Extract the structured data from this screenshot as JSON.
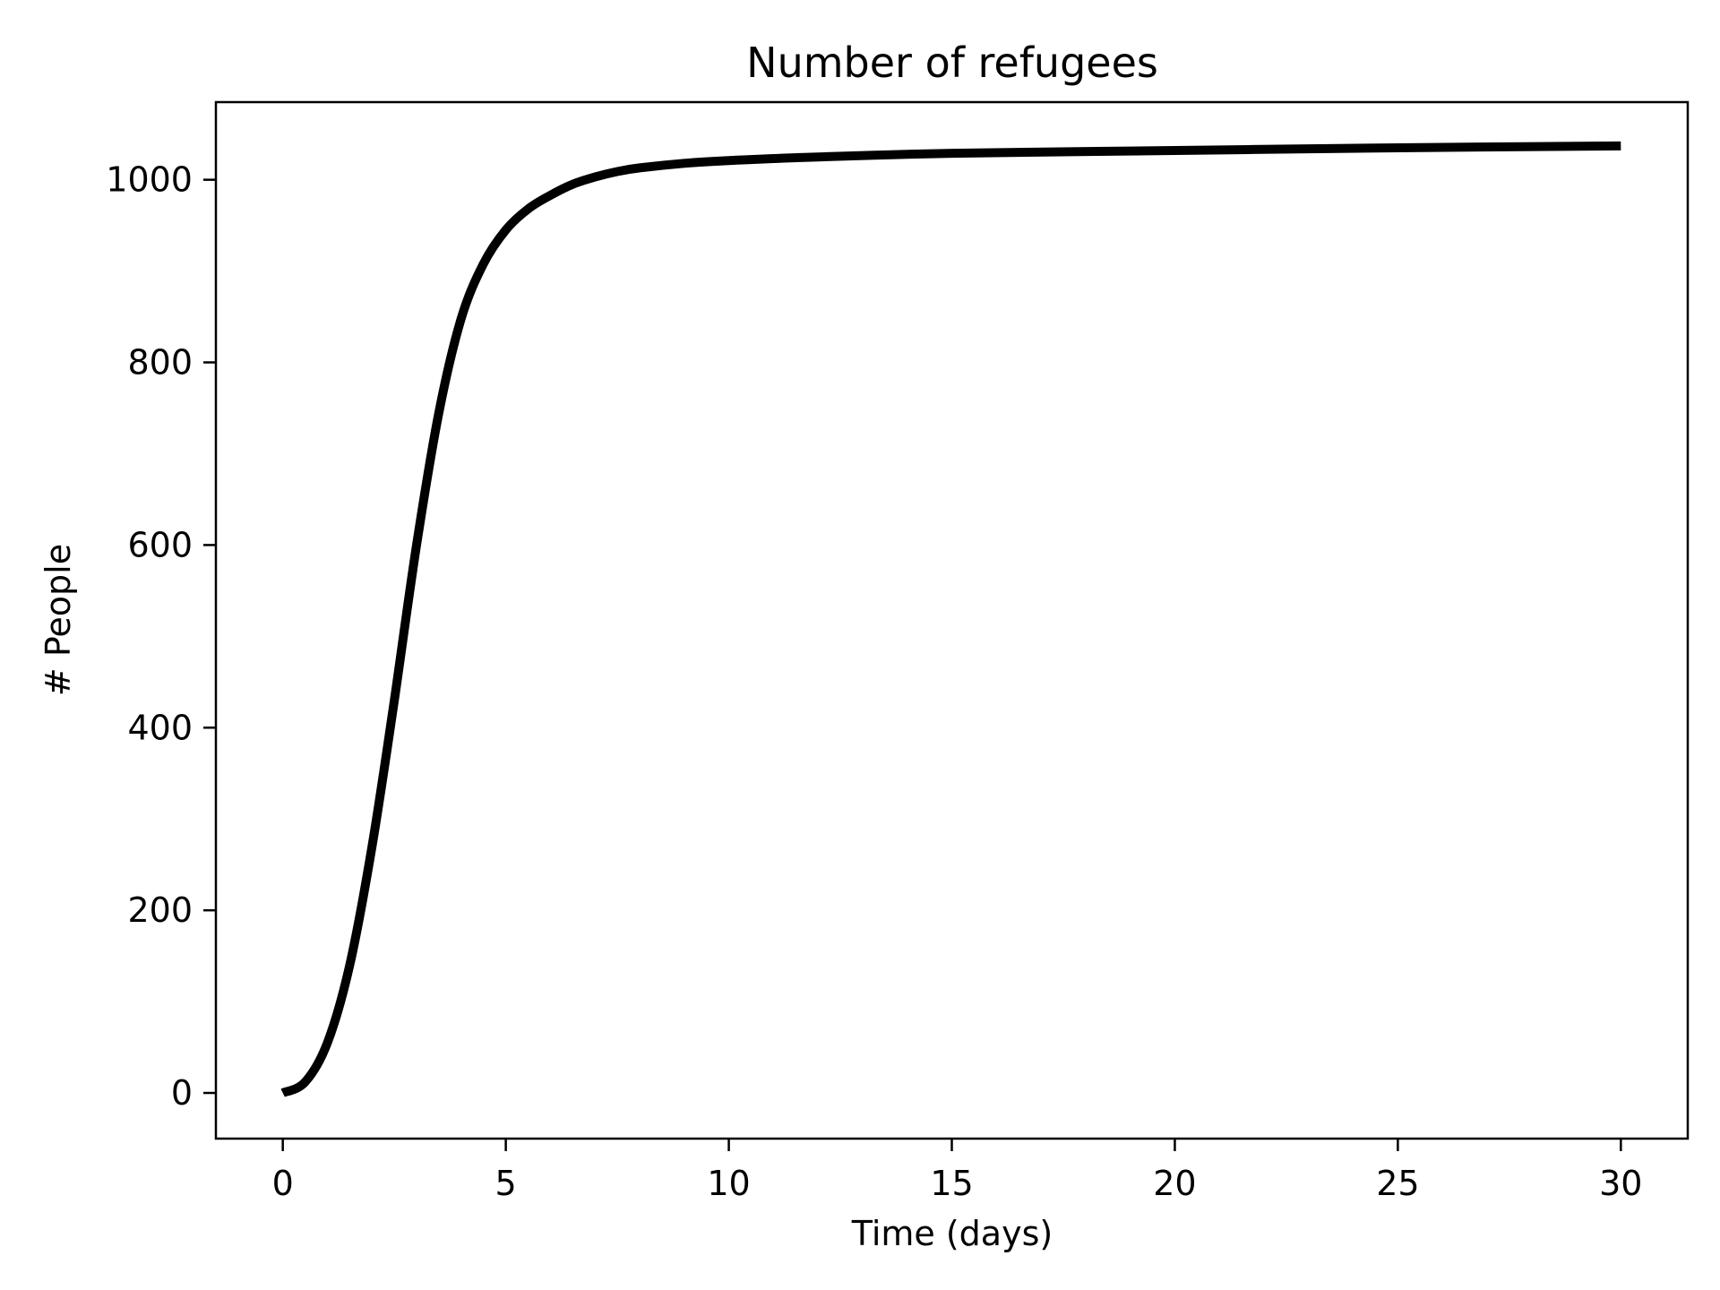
{
  "chart_data": {
    "type": "line",
    "title": "Number of refugees",
    "xlabel": "Time (days)",
    "ylabel": "# People",
    "xlim": [
      -1.5,
      31.5
    ],
    "ylim": [
      -50,
      1085
    ],
    "xticks": [
      0,
      5,
      10,
      15,
      20,
      25,
      30
    ],
    "yticks": [
      0,
      200,
      400,
      600,
      800,
      1000
    ],
    "grid": false,
    "legend": "none",
    "series": [
      {
        "color": "#000000",
        "x": [
          0,
          0.5,
          1,
          1.5,
          2,
          2.5,
          3,
          3.5,
          4,
          4.5,
          5,
          5.5,
          6,
          6.5,
          7,
          7.5,
          8,
          9,
          10,
          12,
          15,
          20,
          25,
          30
        ],
        "y": [
          0,
          12,
          55,
          140,
          270,
          430,
          600,
          745,
          848,
          908,
          945,
          968,
          983,
          995,
          1003,
          1009,
          1013,
          1018,
          1021,
          1025,
          1029,
          1032,
          1035,
          1037
        ]
      }
    ]
  }
}
